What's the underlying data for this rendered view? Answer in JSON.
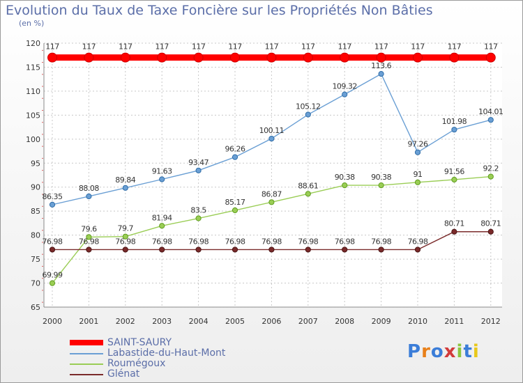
{
  "header": {
    "title": "Evolution du Taux de Taxe Foncière sur les Propriétés Non Bâties",
    "subtitle": "(en %)"
  },
  "logo": {
    "text": "Proxiti"
  },
  "chart_data": {
    "type": "line",
    "title": "Evolution du Taux de Taxe Foncière sur les Propriétés Non Bâties",
    "ylabel": "(en %)",
    "xlabel": "",
    "categories": [
      "2000",
      "2001",
      "2002",
      "2003",
      "2004",
      "2005",
      "2006",
      "2007",
      "2008",
      "2009",
      "2010",
      "2011",
      "2012"
    ],
    "ylim": [
      65,
      120
    ],
    "yticks": [
      65,
      70,
      75,
      80,
      85,
      90,
      95,
      100,
      105,
      110,
      115,
      120
    ],
    "grid": true,
    "legend_position": "bottom-left",
    "series": [
      {
        "name": "SAINT-SAURY",
        "color": "#ff0000",
        "values": [
          117,
          117,
          117,
          117,
          117,
          117,
          117,
          117,
          117,
          117,
          117,
          117,
          117
        ],
        "labels": [
          "117",
          "117",
          "117",
          "117",
          "117",
          "117",
          "117",
          "117",
          "117",
          "117",
          "117",
          "117",
          "117"
        ]
      },
      {
        "name": "Labastide-du-Haut-Mont",
        "color": "#6a9fd4",
        "values": [
          86.35,
          88.08,
          89.84,
          91.63,
          93.47,
          96.26,
          100.11,
          105.12,
          109.32,
          113.6,
          97.26,
          101.98,
          104.01
        ],
        "labels": [
          "86.35",
          "88.08",
          "89.84",
          "91.63",
          "93.47",
          "96.26",
          "100.11",
          "105.12",
          "109.32",
          "113.6",
          "97.26",
          "101.98",
          "104.01"
        ]
      },
      {
        "name": "Roumégoux",
        "color": "#9acd55",
        "values": [
          69.99,
          79.6,
          79.7,
          81.94,
          83.5,
          85.17,
          86.87,
          88.61,
          90.38,
          90.38,
          91,
          91.56,
          92.2
        ],
        "labels": [
          "69.99",
          "79.6",
          "79.7",
          "81.94",
          "83.5",
          "85.17",
          "86.87",
          "88.61",
          "90.38",
          "90.38",
          "91",
          "91.56",
          "92.2"
        ]
      },
      {
        "name": "Glénat",
        "color": "#7a2a2a",
        "values": [
          76.98,
          76.98,
          76.98,
          76.98,
          76.98,
          76.98,
          76.98,
          76.98,
          76.98,
          76.98,
          76.98,
          80.71,
          80.71
        ],
        "labels": [
          "76.98",
          "76.98",
          "76.98",
          "76.98",
          "76.98",
          "76.98",
          "76.98",
          "76.98",
          "76.98",
          "76.98",
          "76.98",
          "80.71",
          "80.71"
        ]
      }
    ]
  }
}
